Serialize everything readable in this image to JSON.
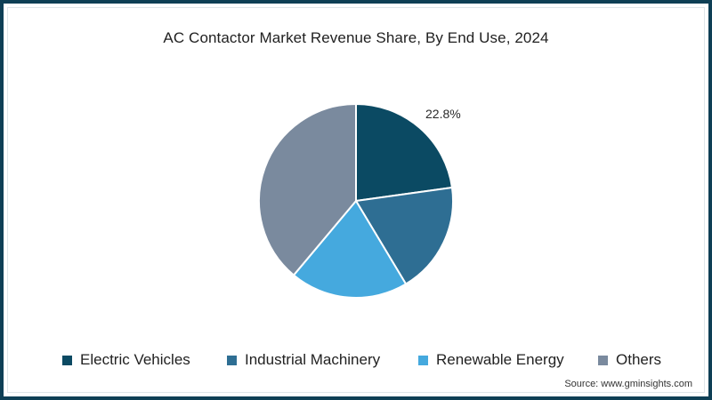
{
  "chart_data": {
    "type": "pie",
    "title": "AC Contactor Market Revenue Share, By End Use, 2024",
    "categories": [
      "Electric Vehicles",
      "Industrial Machinery",
      "Renewable Energy",
      "Others"
    ],
    "values": [
      22.8,
      18.6,
      19.7,
      38.9
    ],
    "unit": "%",
    "colors": [
      "#0b4a63",
      "#2e6e93",
      "#45a9de",
      "#7a8a9e"
    ],
    "data_labels": [
      {
        "category": "Electric Vehicles",
        "text": "22.8%"
      }
    ],
    "start_angle_deg": 0,
    "direction": "clockwise",
    "legend_position": "bottom",
    "source": "Source: www.gminsights.com"
  },
  "title": "AC Contactor Market Revenue Share, By End Use, 2024",
  "label_ev": "22.8%",
  "legend": [
    {
      "label": "Electric Vehicles",
      "color": "#0b4a63"
    },
    {
      "label": "Industrial Machinery",
      "color": "#2e6e93"
    },
    {
      "label": "Renewable Energy",
      "color": "#45a9de"
    },
    {
      "label": "Others",
      "color": "#7a8a9e"
    }
  ],
  "source": "Source: www.gminsights.com"
}
